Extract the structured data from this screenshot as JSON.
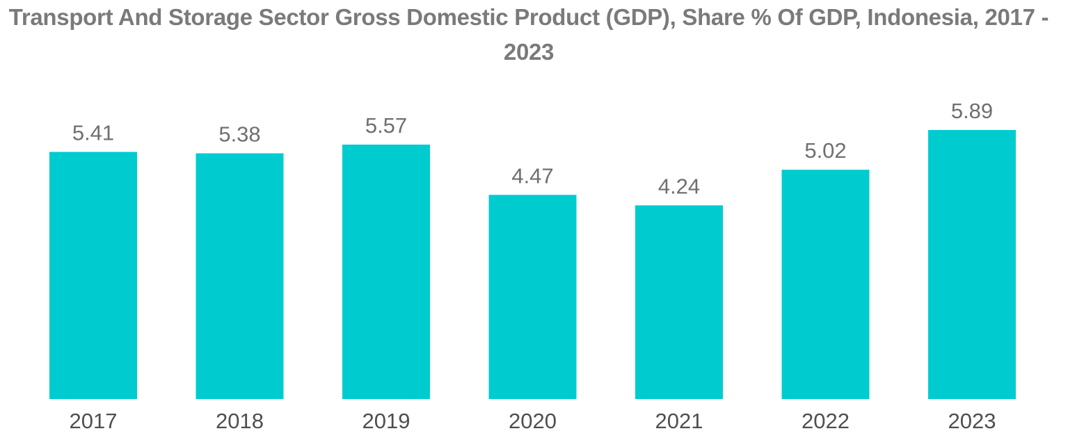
{
  "chart_data": {
    "type": "bar",
    "title": "Transport And Storage Sector Gross Domestic Product (GDP), Share % Of GDP, Indonesia, 2017 - 2023",
    "categories": [
      "2017",
      "2018",
      "2019",
      "2020",
      "2021",
      "2022",
      "2023"
    ],
    "values": [
      5.41,
      5.38,
      5.57,
      4.47,
      4.24,
      5.02,
      5.89
    ],
    "xlabel": "",
    "ylabel": "",
    "ylim": [
      0,
      5.89
    ],
    "grid": false,
    "legend": "none",
    "bar_color": "#00CCD0"
  }
}
